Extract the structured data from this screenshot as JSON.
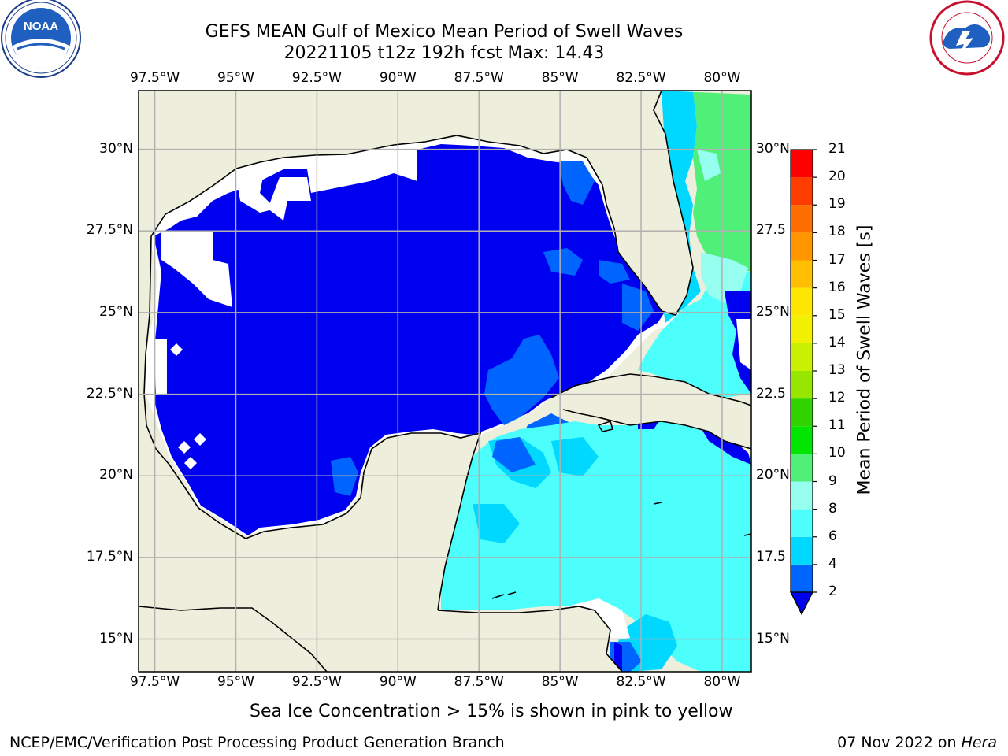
{
  "header": {
    "title_line1": "GEFS MEAN Gulf of Mexico Mean Period of Swell Waves",
    "title_line2": "20221105 t12z 192h fcst   Max: 14.43"
  },
  "logos": {
    "noaa_text": "NOAA",
    "noaa_ring_text": "NATIONAL OCEANIC AND ATMOSPHERIC ADMINISTRATION · U.S. DEPARTMENT OF COMMERCE",
    "nws_ring_text": "NATIONAL WEATHER SERVICE"
  },
  "map": {
    "lon_labels": [
      "97.5°W",
      "95°W",
      "92.5°W",
      "90°W",
      "87.5°W",
      "85°W",
      "82.5°W",
      "80°W"
    ],
    "lat_labels": [
      "30°N",
      "27.5°N",
      "25°N",
      "22.5°N",
      "20°N",
      "17.5°N",
      "15°N"
    ],
    "right_lat_labels": [
      "30°N",
      "27.5",
      "25°N",
      "22.5",
      "20°N",
      "17.5",
      "15°N"
    ],
    "extent": {
      "lon_min": -98,
      "lon_max": -79.1,
      "lat_min": 14,
      "lat_max": 31.8
    },
    "colors": {
      "land": "#eeeedc",
      "undefined_water": "#ffffff",
      "gridline": "#b0b0b0"
    }
  },
  "colorbar": {
    "title": "Mean Period of Swell Waves [s]",
    "ticks": [
      "2",
      "4",
      "6",
      "8",
      "9",
      "10",
      "11",
      "12",
      "13",
      "14",
      "15",
      "16",
      "17",
      "18",
      "19",
      "20",
      "21"
    ],
    "bins": [
      {
        "from": 2,
        "to": 4,
        "color": "#0064ff"
      },
      {
        "from": 4,
        "to": 6,
        "color": "#00d8ff"
      },
      {
        "from": 6,
        "to": 8,
        "color": "#4cfffc"
      },
      {
        "from": 8,
        "to": 9,
        "color": "#96fff0"
      },
      {
        "from": 9,
        "to": 10,
        "color": "#50f078"
      },
      {
        "from": 10,
        "to": 11,
        "color": "#00e600"
      },
      {
        "from": 11,
        "to": 12,
        "color": "#32d200"
      },
      {
        "from": 12,
        "to": 13,
        "color": "#96e600"
      },
      {
        "from": 13,
        "to": 14,
        "color": "#c8f000"
      },
      {
        "from": 14,
        "to": 15,
        "color": "#f0f000"
      },
      {
        "from": 15,
        "to": 16,
        "color": "#ffe600"
      },
      {
        "from": 16,
        "to": 17,
        "color": "#ffbe00"
      },
      {
        "from": 17,
        "to": 18,
        "color": "#ff9600"
      },
      {
        "from": 18,
        "to": 19,
        "color": "#ff6e00"
      },
      {
        "from": 19,
        "to": 20,
        "color": "#ff3c00"
      },
      {
        "from": 20,
        "to": 21,
        "color": "#ff0000"
      }
    ],
    "under_color": "#0000f0"
  },
  "footer": {
    "note": "Sea Ice Concentration > 15% is shown in pink to yellow",
    "credit": "NCEP/EMC/Verification Post Processing Product Generation Branch",
    "date": "07 Nov 2022 on",
    "machine": "Hera"
  }
}
